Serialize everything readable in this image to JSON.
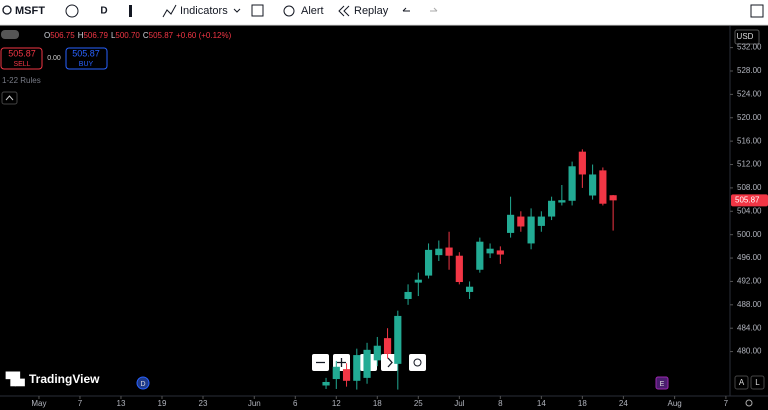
{
  "toolbar": {
    "symbol": "MSFT",
    "interval": "D",
    "indicators": "Indicators",
    "alert": "Alert",
    "replay": "Replay"
  },
  "legend": {
    "items": [
      {
        "label": "O",
        "value": "506.75"
      },
      {
        "label": "H",
        "value": "506.79"
      },
      {
        "label": "L",
        "value": "500.70"
      },
      {
        "label": "C",
        "value": "505.87"
      }
    ],
    "change": "+0.60 (+0.12%)"
  },
  "trade": {
    "sell_price": "505.87",
    "sell": "SELL",
    "spread": "0.00",
    "buy_price": "505.87",
    "buy": "BUY"
  },
  "rules": "1-22 Rules",
  "currency": "USD",
  "brand": "TradingView",
  "events": [
    "D",
    "E"
  ],
  "axis_buttons": [
    "A",
    "L"
  ],
  "chart_data": {
    "type": "candlestick",
    "x": [
      7,
      8,
      9,
      10,
      11,
      12,
      13,
      14,
      15,
      16,
      17,
      18,
      19,
      20,
      21,
      22,
      23,
      24,
      25,
      26,
      27,
      28,
      29,
      30,
      31,
      32,
      33,
      34,
      35
    ],
    "open": [
      474.2,
      475.3,
      477.0,
      475.0,
      475.5,
      478.5,
      482.3,
      477.9,
      489.0,
      491.8,
      493.0,
      496.5,
      497.8,
      496.4,
      490.2,
      494.0,
      496.8,
      497.3,
      500.3,
      503.1,
      498.5,
      501.5,
      503.1,
      505.5,
      505.8,
      514.2,
      506.7,
      511.0,
      506.75
    ],
    "high": [
      475.5,
      478.4,
      478.0,
      480.5,
      481.5,
      482.5,
      484.0,
      487.0,
      491.5,
      493.5,
      498.5,
      499.0,
      500.5,
      497.0,
      492.0,
      499.5,
      498.5,
      498.0,
      506.5,
      504.0,
      504.5,
      504.0,
      506.5,
      508.5,
      512.5,
      514.6,
      512.0,
      511.5,
      506.79
    ],
    "low": [
      473.6,
      473.6,
      474.0,
      473.5,
      474.5,
      477.5,
      478.8,
      473.5,
      488.0,
      489.5,
      492.5,
      495.5,
      494.0,
      491.5,
      489.0,
      493.5,
      496.0,
      495.0,
      499.5,
      500.5,
      497.5,
      500.5,
      502.5,
      505.0,
      505.0,
      508.0,
      506.0,
      505.0,
      500.7
    ],
    "close": [
      474.8,
      477.4,
      475.0,
      479.4,
      480.3,
      481.0,
      479.6,
      486.1,
      490.2,
      492.3,
      497.4,
      497.6,
      496.4,
      491.9,
      491.1,
      498.8,
      497.6,
      496.6,
      503.4,
      501.4,
      503.1,
      503.1,
      505.8,
      505.9,
      511.7,
      510.3,
      510.3,
      505.3,
      505.87
    ],
    "up_color": "#22ab94",
    "down_color": "#f23645",
    "last_price": {
      "value": 505.87,
      "label": "505.87"
    },
    "xlim": [
      -24.8,
      46.4
    ],
    "xticks": [
      {
        "value": -21,
        "label": "May"
      },
      {
        "value": -17,
        "label": "7"
      },
      {
        "value": -13,
        "label": "13"
      },
      {
        "value": -9,
        "label": "19"
      },
      {
        "value": -5,
        "label": "23"
      },
      {
        "value": 0,
        "label": "Jun"
      },
      {
        "value": 4,
        "label": "6"
      },
      {
        "value": 8,
        "label": "12"
      },
      {
        "value": 12,
        "label": "18"
      },
      {
        "value": 16,
        "label": "25"
      },
      {
        "value": 20,
        "label": "Jul"
      },
      {
        "value": 24,
        "label": "8"
      },
      {
        "value": 28,
        "label": "14"
      },
      {
        "value": 32,
        "label": "18"
      },
      {
        "value": 36,
        "label": "24"
      },
      {
        "value": 41,
        "label": "Aug"
      },
      {
        "value": 46,
        "label": "7"
      }
    ],
    "ylim": [
      472.4,
      535.7
    ],
    "yticks": [
      {
        "value": 480,
        "label": "480.00"
      },
      {
        "value": 484,
        "label": "484.00"
      },
      {
        "value": 488,
        "label": "488.00"
      },
      {
        "value": 492,
        "label": "492.00"
      },
      {
        "value": 496,
        "label": "496.00"
      },
      {
        "value": 500,
        "label": "500.00"
      },
      {
        "value": 504,
        "label": "504.00"
      },
      {
        "value": 508,
        "label": "508.00"
      },
      {
        "value": 512,
        "label": "512.00"
      },
      {
        "value": 516,
        "label": "516.00"
      },
      {
        "value": 520,
        "label": "520.00"
      },
      {
        "value": 524,
        "label": "524.00"
      },
      {
        "value": 528,
        "label": "528.00"
      },
      {
        "value": 532,
        "label": "532.00"
      }
    ]
  }
}
